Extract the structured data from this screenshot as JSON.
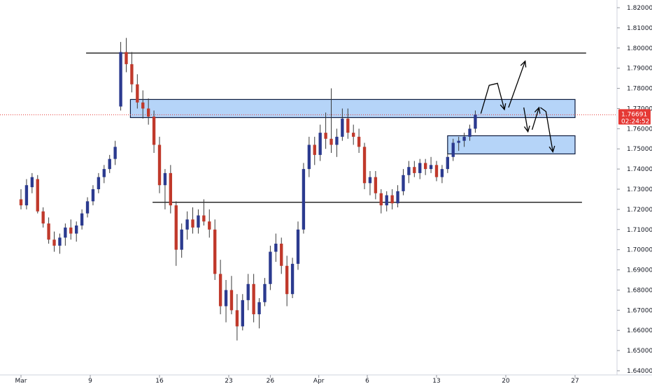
{
  "chart_data": {
    "type": "candlestick",
    "title": "",
    "xlabel": "",
    "ylabel": "",
    "ylim": [
      1.64,
      1.825
    ],
    "xlim": [
      0,
      38
    ],
    "x_axis_unit": "trading days from Mar 2",
    "grid": false,
    "colors": {
      "up": "#2b3a8f",
      "down": "#c0392b",
      "zone_fill": "#a8cdf7",
      "zone_stroke": "#0d1b3e",
      "line": "#000000",
      "price_line": "#e53935"
    },
    "x_ticks": [
      {
        "x": 0,
        "label": "Mar"
      },
      {
        "x": 5,
        "label": "9"
      },
      {
        "x": 10,
        "label": "16"
      },
      {
        "x": 15,
        "label": "23"
      },
      {
        "x": 18,
        "label": "26"
      },
      {
        "x": 21.5,
        "label": "Apr"
      },
      {
        "x": 25,
        "label": "6"
      },
      {
        "x": 30,
        "label": "13"
      },
      {
        "x": 35,
        "label": "20"
      },
      {
        "x": 40,
        "label": "27"
      }
    ],
    "y_ticks": [
      "1.64000",
      "1.65000",
      "1.66000",
      "1.67000",
      "1.68000",
      "1.69000",
      "1.70000",
      "1.71000",
      "1.72000",
      "1.73000",
      "1.74000",
      "1.75000",
      "1.76000",
      "1.77000",
      "1.78000",
      "1.79000",
      "1.80000",
      "1.81000",
      "1.82000"
    ],
    "y_tick_values": [
      1.64,
      1.65,
      1.66,
      1.67,
      1.68,
      1.69,
      1.7,
      1.71,
      1.72,
      1.73,
      1.74,
      1.75,
      1.76,
      1.77,
      1.78,
      1.79,
      1.8,
      1.81,
      1.82
    ],
    "last_price": {
      "value": 1.76691,
      "label": "1.76691",
      "countdown": "02:24:52"
    },
    "horizontal_lines": [
      {
        "y": 1.7975,
        "x_start": 4.7,
        "x_end": 40.8
      },
      {
        "y": 1.7235,
        "x_start": 9.5,
        "x_end": 40.5
      }
    ],
    "zones": [
      {
        "y_low": 1.7655,
        "y_high": 1.7745,
        "x_start": 7.9,
        "x_end": 40.0
      },
      {
        "y_low": 1.7475,
        "y_high": 1.7565,
        "x_start": 30.8,
        "x_end": 40.0
      }
    ],
    "arrows": [
      {
        "points": [
          [
            33.2,
            1.7675
          ],
          [
            33.8,
            1.7815
          ],
          [
            34.4,
            1.7825
          ],
          [
            34.9,
            1.7695
          ]
        ]
      },
      {
        "points": [
          [
            35.2,
            1.7705
          ],
          [
            36.4,
            1.7935
          ]
        ]
      },
      {
        "points": [
          [
            36.3,
            1.7705
          ],
          [
            36.6,
            1.7585
          ]
        ]
      },
      {
        "points": [
          [
            36.9,
            1.7595
          ],
          [
            37.4,
            1.7705
          ]
        ]
      },
      {
        "points": [
          [
            37.5,
            1.7705
          ],
          [
            37.9,
            1.7685
          ],
          [
            38.4,
            1.7485
          ]
        ]
      }
    ],
    "candles": [
      [
        1.725,
        1.73,
        1.72,
        1.722
      ],
      [
        1.722,
        1.735,
        1.72,
        1.732
      ],
      [
        1.731,
        1.738,
        1.728,
        1.736
      ],
      [
        1.735,
        1.737,
        1.718,
        1.719
      ],
      [
        1.719,
        1.721,
        1.711,
        1.713
      ],
      [
        1.713,
        1.716,
        1.703,
        1.705
      ],
      [
        1.705,
        1.709,
        1.699,
        1.702
      ],
      [
        1.702,
        1.708,
        1.698,
        1.706
      ],
      [
        1.706,
        1.713,
        1.702,
        1.711
      ],
      [
        1.711,
        1.715,
        1.705,
        1.708
      ],
      [
        1.708,
        1.714,
        1.704,
        1.712
      ],
      [
        1.712,
        1.72,
        1.71,
        1.718
      ],
      [
        1.718,
        1.726,
        1.716,
        1.724
      ],
      [
        1.724,
        1.732,
        1.722,
        1.73
      ],
      [
        1.73,
        1.738,
        1.728,
        1.736
      ],
      [
        1.736,
        1.742,
        1.733,
        1.74
      ],
      [
        1.74,
        1.747,
        1.738,
        1.745
      ],
      [
        1.745,
        1.754,
        1.742,
        1.751
      ],
      [
        1.771,
        1.803,
        1.769,
        1.798
      ],
      [
        1.798,
        1.805,
        1.788,
        1.792
      ],
      [
        1.792,
        1.798,
        1.778,
        1.782
      ],
      [
        1.782,
        1.787,
        1.77,
        1.773
      ],
      [
        1.773,
        1.779,
        1.765,
        1.77
      ],
      [
        1.77,
        1.775,
        1.762,
        1.766
      ],
      [
        1.766,
        1.769,
        1.748,
        1.752
      ],
      [
        1.752,
        1.756,
        1.728,
        1.732
      ],
      [
        1.732,
        1.74,
        1.72,
        1.738
      ],
      [
        1.738,
        1.742,
        1.718,
        1.722
      ],
      [
        1.722,
        1.724,
        1.692,
        1.7
      ],
      [
        1.7,
        1.713,
        1.696,
        1.71
      ],
      [
        1.71,
        1.719,
        1.705,
        1.715
      ],
      [
        1.715,
        1.721,
        1.708,
        1.711
      ],
      [
        1.711,
        1.72,
        1.708,
        1.717
      ],
      [
        1.717,
        1.725,
        1.712,
        1.714
      ],
      [
        1.714,
        1.72,
        1.706,
        1.71
      ],
      [
        1.71,
        1.715,
        1.685,
        1.688
      ],
      [
        1.688,
        1.695,
        1.668,
        1.672
      ],
      [
        1.672,
        1.685,
        1.664,
        1.68
      ],
      [
        1.68,
        1.687,
        1.668,
        1.67
      ],
      [
        1.67,
        1.678,
        1.655,
        1.662
      ],
      [
        1.662,
        1.678,
        1.66,
        1.675
      ],
      [
        1.675,
        1.688,
        1.67,
        1.683
      ],
      [
        1.683,
        1.688,
        1.664,
        1.668
      ],
      [
        1.668,
        1.676,
        1.661,
        1.674
      ],
      [
        1.674,
        1.686,
        1.672,
        1.683
      ],
      [
        1.683,
        1.702,
        1.68,
        1.699
      ],
      [
        1.699,
        1.708,
        1.694,
        1.703
      ],
      [
        1.703,
        1.706,
        1.688,
        1.692
      ],
      [
        1.692,
        1.697,
        1.672,
        1.678
      ],
      [
        1.678,
        1.696,
        1.676,
        1.693
      ],
      [
        1.693,
        1.714,
        1.69,
        1.71
      ],
      [
        1.71,
        1.743,
        1.708,
        1.74
      ],
      [
        1.74,
        1.756,
        1.736,
        1.752
      ],
      [
        1.752,
        1.756,
        1.742,
        1.747
      ],
      [
        1.747,
        1.762,
        1.744,
        1.758
      ],
      [
        1.758,
        1.768,
        1.75,
        1.755
      ],
      [
        1.755,
        1.78,
        1.748,
        1.752
      ],
      [
        1.752,
        1.76,
        1.746,
        1.756
      ],
      [
        1.756,
        1.77,
        1.754,
        1.765
      ],
      [
        1.765,
        1.77,
        1.755,
        1.758
      ],
      [
        1.758,
        1.762,
        1.752,
        1.756
      ],
      [
        1.756,
        1.76,
        1.748,
        1.751
      ],
      [
        1.751,
        1.753,
        1.73,
        1.733
      ],
      [
        1.733,
        1.739,
        1.727,
        1.736
      ],
      [
        1.736,
        1.739,
        1.725,
        1.728
      ],
      [
        1.728,
        1.73,
        1.718,
        1.722
      ],
      [
        1.722,
        1.729,
        1.719,
        1.727
      ],
      [
        1.727,
        1.73,
        1.72,
        1.723
      ],
      [
        1.723,
        1.732,
        1.721,
        1.729
      ],
      [
        1.729,
        1.74,
        1.727,
        1.737
      ],
      [
        1.737,
        1.744,
        1.733,
        1.741
      ],
      [
        1.741,
        1.744,
        1.736,
        1.738
      ],
      [
        1.738,
        1.745,
        1.735,
        1.743
      ],
      [
        1.743,
        1.745,
        1.737,
        1.74
      ],
      [
        1.74,
        1.746,
        1.738,
        1.742
      ],
      [
        1.742,
        1.744,
        1.734,
        1.736
      ],
      [
        1.736,
        1.742,
        1.733,
        1.74
      ],
      [
        1.74,
        1.748,
        1.738,
        1.746
      ],
      [
        1.746,
        1.755,
        1.744,
        1.753
      ],
      [
        1.753,
        1.756,
        1.749,
        1.754
      ],
      [
        1.754,
        1.758,
        1.751,
        1.756
      ],
      [
        1.756,
        1.762,
        1.754,
        1.76
      ],
      [
        1.76,
        1.769,
        1.758,
        1.7669
      ]
    ],
    "candle_x_start": 0.0,
    "candle_x_step": 0.4
  }
}
